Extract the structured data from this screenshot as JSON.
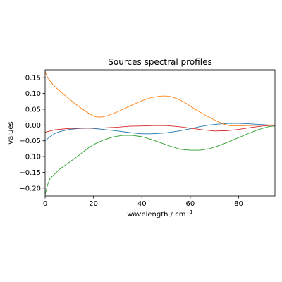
{
  "chart_data": {
    "type": "line",
    "title": "Sources spectral profiles",
    "xlabel": "wavelength / cm",
    "xlabel_superscript": "−1",
    "ylabel": "values",
    "xlim": [
      0,
      95
    ],
    "ylim": [
      -0.225,
      0.175
    ],
    "xticks": [
      0,
      20,
      40,
      60,
      80
    ],
    "yticks": [
      -0.2,
      -0.15,
      -0.1,
      -0.05,
      0.0,
      0.05,
      0.1,
      0.15
    ],
    "xtick_labels": [
      "0",
      "20",
      "40",
      "60",
      "80"
    ],
    "ytick_labels": [
      "−0.20",
      "−0.15",
      "−0.10",
      "−0.05",
      "0.00",
      "0.05",
      "0.10",
      "0.15"
    ],
    "grid": false,
    "legend": "none",
    "series": [
      {
        "color": "#1f77b4",
        "x": [
          0,
          2,
          4,
          6,
          10,
          14,
          18,
          20,
          24,
          30,
          36,
          40,
          44,
          50,
          56,
          60,
          64,
          68,
          72,
          76,
          80,
          84,
          88,
          92,
          95
        ],
        "y": [
          -0.05,
          -0.037,
          -0.027,
          -0.021,
          -0.014,
          -0.011,
          -0.01,
          -0.011,
          -0.014,
          -0.019,
          -0.025,
          -0.028,
          -0.028,
          -0.025,
          -0.018,
          -0.012,
          -0.005,
          0.0,
          0.003,
          0.005,
          0.005,
          0.004,
          0.002,
          0.0,
          -0.001
        ]
      },
      {
        "color": "#ff7f0e",
        "x": [
          0,
          1,
          3,
          5,
          8,
          12,
          16,
          20,
          22,
          24,
          26,
          30,
          35,
          40,
          44,
          48,
          50,
          52,
          55,
          58,
          62,
          66,
          70,
          73,
          76,
          80,
          84,
          88,
          92,
          95
        ],
        "y": [
          0.17,
          0.15,
          0.13,
          0.115,
          0.095,
          0.07,
          0.047,
          0.028,
          0.025,
          0.026,
          0.03,
          0.042,
          0.06,
          0.077,
          0.087,
          0.092,
          0.092,
          0.09,
          0.082,
          0.07,
          0.05,
          0.032,
          0.016,
          0.005,
          -0.002,
          -0.003,
          -0.002,
          -0.001,
          0.0,
          0.0
        ]
      },
      {
        "color": "#2ca02c",
        "x": [
          0,
          1,
          2,
          4,
          6,
          10,
          14,
          18,
          20,
          24,
          28,
          32,
          36,
          40,
          44,
          48,
          52,
          56,
          60,
          64,
          68,
          72,
          76,
          80,
          84,
          88,
          92,
          95
        ],
        "y": [
          -0.22,
          -0.19,
          -0.17,
          -0.155,
          -0.14,
          -0.118,
          -0.096,
          -0.072,
          -0.062,
          -0.048,
          -0.038,
          -0.033,
          -0.033,
          -0.037,
          -0.046,
          -0.057,
          -0.068,
          -0.077,
          -0.08,
          -0.08,
          -0.075,
          -0.065,
          -0.053,
          -0.04,
          -0.027,
          -0.015,
          -0.006,
          -0.003
        ]
      },
      {
        "color": "#d62728",
        "x": [
          0,
          4,
          10,
          15,
          20,
          25,
          30,
          35,
          40,
          45,
          50,
          55,
          60,
          65,
          70,
          75,
          80,
          85,
          90,
          95
        ],
        "y": [
          -0.023,
          -0.015,
          -0.011,
          -0.01,
          -0.01,
          -0.009,
          -0.007,
          -0.004,
          -0.003,
          -0.002,
          -0.002,
          -0.005,
          -0.01,
          -0.015,
          -0.019,
          -0.018,
          -0.014,
          -0.008,
          -0.003,
          -0.001
        ]
      }
    ]
  }
}
